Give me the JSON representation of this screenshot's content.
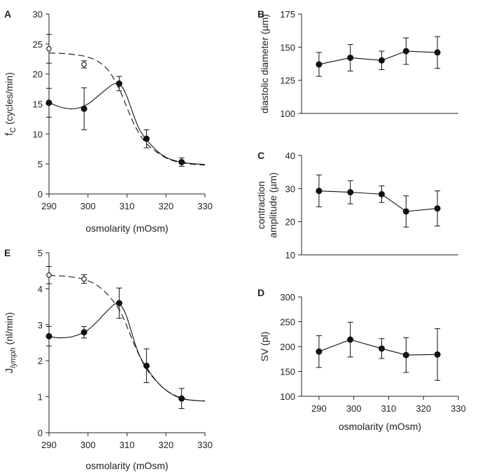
{
  "chart_data": [
    {
      "panel": "A",
      "type": "scatter",
      "xlabel": "osmolarity (mOsm)",
      "ylabel_main": "f",
      "ylabel_sub": "C",
      "ylabel_rest": " (cycles/min)",
      "xlim": [
        290,
        330
      ],
      "ylim": [
        0,
        30
      ],
      "xticks": [
        290,
        300,
        310,
        320,
        330
      ],
      "yticks": [
        0,
        5,
        10,
        15,
        20,
        25,
        30
      ],
      "series": [
        {
          "name": "filled",
          "marker": "filled",
          "x": [
            290,
            299,
            308,
            315,
            324
          ],
          "y": [
            15.2,
            14.2,
            18.4,
            9.2,
            5.3
          ],
          "err": [
            2.4,
            3.5,
            1.2,
            1.5,
            0.7
          ],
          "curve_x": [
            290,
            292,
            294,
            296,
            298,
            300,
            302,
            304,
            306,
            307,
            308,
            309,
            310,
            311,
            312,
            313,
            314,
            315,
            316,
            318,
            320,
            322,
            324,
            326,
            328,
            330
          ],
          "curve_y": [
            15.2,
            14.7,
            14.3,
            14.2,
            14.4,
            15.0,
            16.0,
            17.1,
            18.1,
            18.4,
            18.3,
            17.6,
            16.2,
            14.4,
            12.6,
            11.0,
            9.9,
            9.0,
            8.3,
            7.0,
            6.1,
            5.6,
            5.3,
            5.1,
            5.0,
            4.9
          ]
        },
        {
          "name": "open",
          "marker": "open",
          "x": [
            290,
            299
          ],
          "y": [
            24.2,
            21.6
          ],
          "err": [
            2.4,
            0.6
          ],
          "curve_x": [
            290,
            294,
            298,
            300,
            302,
            304,
            306,
            308,
            309,
            310,
            311,
            312,
            313,
            314,
            315,
            316,
            318,
            320,
            322,
            324,
            326,
            328,
            330
          ],
          "curve_y": [
            23.5,
            23.4,
            23.1,
            22.8,
            22.3,
            21.4,
            19.9,
            17.5,
            16.0,
            14.4,
            12.8,
            11.4,
            10.2,
            9.2,
            8.4,
            7.8,
            6.8,
            6.0,
            5.5,
            5.2,
            5.0,
            4.9,
            4.8
          ]
        }
      ]
    },
    {
      "panel": "B",
      "type": "line",
      "xlabel": "",
      "ylabel": "diastolic diameter (µm)",
      "xlim": [
        285,
        330
      ],
      "ylim": [
        100,
        175
      ],
      "yticks": [
        100,
        125,
        150,
        175
      ],
      "series": [
        {
          "name": "diameter",
          "x": [
            290,
            299,
            308,
            315,
            324
          ],
          "y": [
            137,
            142,
            140,
            147,
            146
          ],
          "err": [
            9,
            10,
            7,
            10,
            12
          ]
        }
      ]
    },
    {
      "panel": "C",
      "type": "line",
      "xlabel": "",
      "ylabel_line1": "contraction",
      "ylabel_line2": "amplitude (µm)",
      "xlim": [
        285,
        330
      ],
      "ylim": [
        10,
        40
      ],
      "yticks": [
        10,
        20,
        30,
        40
      ],
      "series": [
        {
          "name": "amplitude",
          "x": [
            290,
            299,
            308,
            315,
            324
          ],
          "y": [
            29.3,
            28.9,
            28.3,
            23.1,
            24.0
          ],
          "err": [
            4.8,
            3.5,
            2.5,
            4.7,
            5.3
          ]
        }
      ]
    },
    {
      "panel": "D",
      "type": "line",
      "xlabel": "osmolarity (mOsm)",
      "ylabel": "SV (pl)",
      "xlim": [
        285,
        330
      ],
      "ylim": [
        100,
        300
      ],
      "xticks": [
        290,
        300,
        310,
        320,
        330
      ],
      "yticks": [
        100,
        150,
        200,
        250,
        300
      ],
      "series": [
        {
          "name": "sv",
          "x": [
            290,
            299,
            308,
            315,
            324
          ],
          "y": [
            190,
            214,
            196,
            183,
            184
          ],
          "err": [
            32,
            35,
            20,
            35,
            52
          ]
        }
      ]
    },
    {
      "panel": "E",
      "type": "scatter",
      "xlabel": "osmolarity (mOsm)",
      "ylabel_main": "J",
      "ylabel_sub": "lymph",
      "ylabel_rest": " (nl/min)",
      "xlim": [
        290,
        330
      ],
      "ylim": [
        0,
        5
      ],
      "xticks": [
        290,
        300,
        310,
        320,
        330
      ],
      "yticks": [
        0,
        1,
        2,
        3,
        4,
        5
      ],
      "series": [
        {
          "name": "filled",
          "marker": "filled",
          "x": [
            290,
            299,
            308,
            315,
            324
          ],
          "y": [
            2.68,
            2.79,
            3.6,
            1.86,
            0.95
          ],
          "err": [
            0.27,
            0.16,
            0.42,
            0.47,
            0.28
          ],
          "curve_x": [
            290,
            292,
            294,
            296,
            298,
            300,
            302,
            304,
            306,
            307,
            308,
            309,
            310,
            311,
            312,
            313,
            314,
            315,
            316,
            318,
            320,
            322,
            324,
            326,
            328,
            330
          ],
          "curve_y": [
            2.68,
            2.64,
            2.64,
            2.67,
            2.74,
            2.86,
            3.05,
            3.28,
            3.5,
            3.58,
            3.58,
            3.45,
            3.2,
            2.85,
            2.5,
            2.2,
            1.98,
            1.82,
            1.65,
            1.38,
            1.18,
            1.04,
            0.95,
            0.91,
            0.89,
            0.88
          ]
        },
        {
          "name": "open",
          "marker": "open",
          "x": [
            290,
            299
          ],
          "y": [
            4.38,
            4.27
          ],
          "err": [
            0.24,
            0.12
          ],
          "curve_x": [
            290,
            294,
            298,
            300,
            302,
            304,
            306,
            308,
            309,
            310,
            311,
            312,
            313,
            314,
            315,
            316,
            318,
            320,
            322,
            324,
            326,
            328,
            330
          ],
          "curve_y": [
            4.37,
            4.35,
            4.29,
            4.22,
            4.12,
            3.95,
            3.72,
            3.42,
            3.2,
            2.95,
            2.68,
            2.42,
            2.18,
            1.96,
            1.78,
            1.62,
            1.38,
            1.18,
            1.05,
            0.96,
            0.91,
            0.89,
            0.88
          ]
        }
      ]
    }
  ]
}
